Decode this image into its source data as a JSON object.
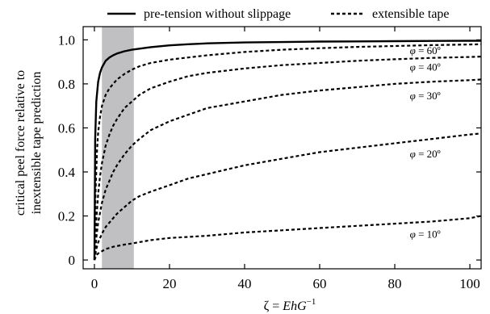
{
  "chart_data": {
    "type": "line",
    "xlabel_prefix": "ζ = ",
    "xlabel_main": "EhG",
    "xlabel_sup": "−1",
    "ylabel_lines": [
      "critical peel force relative to",
      "inextensible tape prediction"
    ],
    "xlim": [
      -3,
      103
    ],
    "ylim": [
      -0.04,
      1.06
    ],
    "xticks": [
      0,
      20,
      40,
      60,
      80,
      100
    ],
    "yticks": [
      0,
      0.2,
      0.4,
      0.6,
      0.8,
      1.0
    ],
    "ytick_labels": [
      "0",
      "0.2",
      "0.4",
      "0.6",
      "0.8",
      "1.0"
    ],
    "grid": false,
    "legend_placement": "top, outside plot",
    "shaded_band": {
      "x_from": 2,
      "x_to": 10.5,
      "color": "#c0c0c2"
    },
    "series": [
      {
        "name": "pre-tension without slippage",
        "style": "solid",
        "x": [
          0,
          0.2,
          0.5,
          1,
          1.5,
          2,
          3,
          4,
          5,
          6,
          8,
          10,
          12,
          15,
          20,
          25,
          30,
          40,
          50,
          60,
          70,
          80,
          90,
          100,
          103
        ],
        "y": [
          0.0,
          0.55,
          0.72,
          0.81,
          0.85,
          0.875,
          0.905,
          0.92,
          0.93,
          0.938,
          0.948,
          0.955,
          0.96,
          0.967,
          0.975,
          0.98,
          0.984,
          0.988,
          0.99,
          0.992,
          0.993,
          0.994,
          0.995,
          0.996,
          0.996
        ]
      },
      {
        "name": "extensible tape",
        "phi_label": "60º",
        "style": "dashed",
        "x": [
          0,
          0.3,
          0.7,
          1,
          1.5,
          2,
          3,
          4,
          5,
          6,
          8,
          10,
          12,
          15,
          20,
          25,
          30,
          40,
          50,
          60,
          70,
          80,
          90,
          100,
          103
        ],
        "y": [
          0.0,
          0.3,
          0.5,
          0.58,
          0.65,
          0.7,
          0.75,
          0.78,
          0.8,
          0.82,
          0.845,
          0.865,
          0.88,
          0.895,
          0.91,
          0.92,
          0.93,
          0.945,
          0.955,
          0.962,
          0.968,
          0.972,
          0.976,
          0.979,
          0.98
        ]
      },
      {
        "name": "extensible tape",
        "phi_label": "40º",
        "style": "dashed",
        "x": [
          0,
          0.5,
          1,
          1.5,
          2,
          3,
          4,
          5,
          6,
          8,
          10,
          12,
          15,
          20,
          25,
          30,
          40,
          50,
          60,
          70,
          80,
          90,
          100,
          103
        ],
        "y": [
          0.0,
          0.18,
          0.3,
          0.38,
          0.44,
          0.52,
          0.57,
          0.61,
          0.64,
          0.69,
          0.72,
          0.75,
          0.78,
          0.81,
          0.835,
          0.85,
          0.87,
          0.885,
          0.895,
          0.905,
          0.912,
          0.918,
          0.922,
          0.924
        ]
      },
      {
        "name": "extensible tape",
        "phi_label": "30º",
        "style": "dashed",
        "x": [
          0,
          0.5,
          1,
          2,
          3,
          4,
          5,
          6,
          8,
          10,
          12,
          15,
          20,
          25,
          30,
          40,
          50,
          60,
          70,
          80,
          90,
          100,
          103
        ],
        "y": [
          0.0,
          0.1,
          0.17,
          0.26,
          0.32,
          0.36,
          0.4,
          0.43,
          0.48,
          0.52,
          0.55,
          0.59,
          0.63,
          0.66,
          0.69,
          0.72,
          0.75,
          0.77,
          0.785,
          0.8,
          0.81,
          0.817,
          0.82
        ]
      },
      {
        "name": "extensible tape",
        "phi_label": "20º",
        "style": "dashed",
        "x": [
          0,
          0.5,
          1,
          2,
          3,
          4,
          5,
          6,
          8,
          10,
          12,
          15,
          20,
          25,
          30,
          40,
          50,
          60,
          70,
          80,
          90,
          100,
          103
        ],
        "y": [
          0.0,
          0.05,
          0.08,
          0.12,
          0.15,
          0.17,
          0.19,
          0.21,
          0.24,
          0.27,
          0.29,
          0.31,
          0.34,
          0.37,
          0.39,
          0.43,
          0.46,
          0.49,
          0.51,
          0.53,
          0.55,
          0.57,
          0.575
        ]
      },
      {
        "name": "extensible tape",
        "phi_label": "10º",
        "style": "dashed",
        "x": [
          0,
          0.5,
          1,
          2,
          3,
          5,
          8,
          10,
          15,
          20,
          25,
          30,
          40,
          50,
          60,
          70,
          80,
          90,
          100,
          103
        ],
        "y": [
          0.0,
          0.02,
          0.03,
          0.04,
          0.05,
          0.06,
          0.07,
          0.075,
          0.09,
          0.1,
          0.105,
          0.11,
          0.125,
          0.135,
          0.145,
          0.155,
          0.165,
          0.175,
          0.19,
          0.2
        ]
      }
    ],
    "annotations": [
      {
        "phi": "φ",
        "text": " = 60º",
        "x": 84,
        "y": 0.95
      },
      {
        "phi": "φ",
        "text": " = 40º",
        "x": 84,
        "y": 0.875
      },
      {
        "phi": "φ",
        "text": " = 30º",
        "x": 84,
        "y": 0.745
      },
      {
        "phi": "φ",
        "text": " = 20º",
        "x": 84,
        "y": 0.48
      },
      {
        "phi": "φ",
        "text": " = 10º",
        "x": 84,
        "y": 0.115
      }
    ]
  }
}
